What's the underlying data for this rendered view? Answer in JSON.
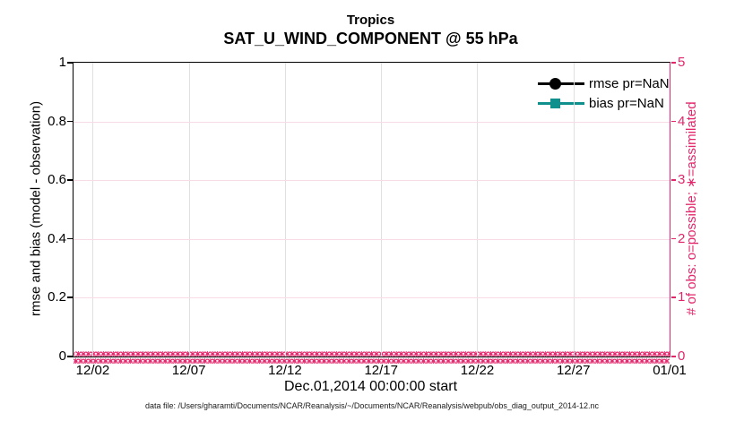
{
  "figure": {
    "title": "Tropics",
    "subtitle": "SAT_U_WIND_COMPONENT @ 55 hPa",
    "xlabel": "Dec.01,2014 00:00:00 start",
    "caption": "data file: /Users/gharamti/Documents/NCAR/Reanalysis/~/Documents/NCAR/Reanalysis/webpub/obs_diag_output_2014-12.nc"
  },
  "chart_data": {
    "type": "line",
    "title": "Tropics",
    "subtitle": "SAT_U_WIND_COMPONENT @ 55 hPa",
    "xlabel": "Dec.01,2014 00:00:00 start",
    "grid": {
      "on": true,
      "x_color": "#e0e0e0",
      "y_color": "#f7dce7"
    },
    "x_axis": {
      "start": "Dec.01,2014 00:00:00",
      "span_days": 31,
      "ticks": [
        {
          "label": "12/02",
          "day_offset": 1
        },
        {
          "label": "12/07",
          "day_offset": 6
        },
        {
          "label": "12/12",
          "day_offset": 11
        },
        {
          "label": "12/17",
          "day_offset": 16
        },
        {
          "label": "12/22",
          "day_offset": 21
        },
        {
          "label": "12/27",
          "day_offset": 26
        },
        {
          "label": "01/01",
          "day_offset": 31
        }
      ]
    },
    "y_left": {
      "label": "rmse and bias (model - observation)",
      "min": 0,
      "max": 1,
      "ticks": [
        "0",
        "0.2",
        "0.4",
        "0.6",
        "0.8",
        "1"
      ],
      "color": "#000000"
    },
    "y_right": {
      "label": "# of obs: o=possible; ∗=assimilated",
      "min": 0,
      "max": 5,
      "ticks": [
        "0",
        "1",
        "2",
        "3",
        "4",
        "5"
      ],
      "color": "#e3266b"
    },
    "series": [
      {
        "name": "rmse pr=NaN",
        "marker": "filled-circle",
        "color": "#000000",
        "values": "NaN (nothing plotted)"
      },
      {
        "name": "bias pr=NaN",
        "marker": "filled-square",
        "color": "#0f908c",
        "values": "NaN (nothing plotted)"
      }
    ],
    "obs_band": {
      "description": "o=possible and ∗=assimilated observation-count markers, all plotted at 0 for every time bin from 12/01 to 01/01",
      "value": 0,
      "glyphs": "o∗",
      "color": "#e3266b",
      "rows": 2,
      "repeat": 170
    },
    "legend": {
      "location": "top-right-inside",
      "box": false,
      "entries": [
        "rmse pr=NaN",
        "bias pr=NaN"
      ]
    }
  }
}
